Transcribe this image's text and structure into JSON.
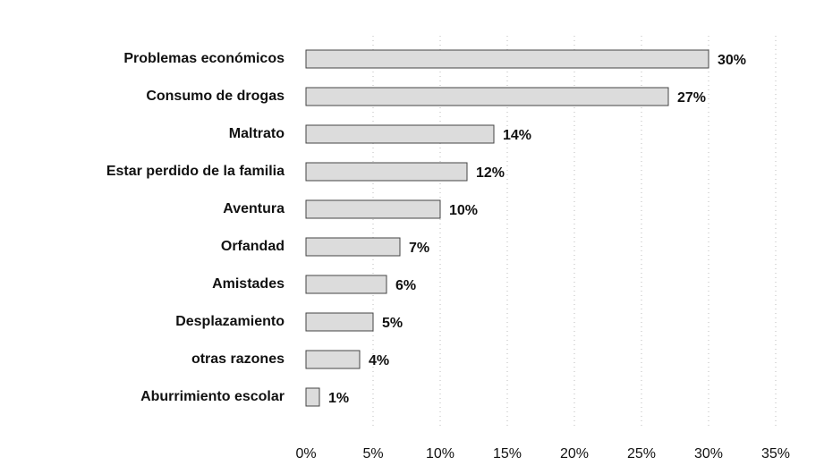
{
  "chart_data": {
    "type": "bar",
    "orientation": "horizontal",
    "categories": [
      "Problemas económicos",
      "Consumo de drogas",
      "Maltrato",
      "Estar perdido de la familia",
      "Aventura",
      "Orfandad",
      "Amistades",
      "Desplazamiento",
      "otras razones",
      "Aburrimiento escolar"
    ],
    "values": [
      30,
      27,
      14,
      12,
      10,
      7,
      6,
      5,
      4,
      1
    ],
    "value_labels": [
      "30%",
      "27%",
      "14%",
      "12%",
      "10%",
      "7%",
      "6%",
      "5%",
      "4%",
      "1%"
    ],
    "color": "#dcdcdc",
    "xlim": [
      0,
      35
    ],
    "xticks": [
      {
        "value": 0,
        "label": "0%"
      },
      {
        "value": 5,
        "label": "5%"
      },
      {
        "value": 10,
        "label": "10%"
      },
      {
        "value": 15,
        "label": "15%"
      },
      {
        "value": 20,
        "label": "20%"
      },
      {
        "value": 25,
        "label": "25%"
      },
      {
        "value": 30,
        "label": "30%"
      },
      {
        "value": 35,
        "label": "35%"
      }
    ],
    "grid": true
  }
}
